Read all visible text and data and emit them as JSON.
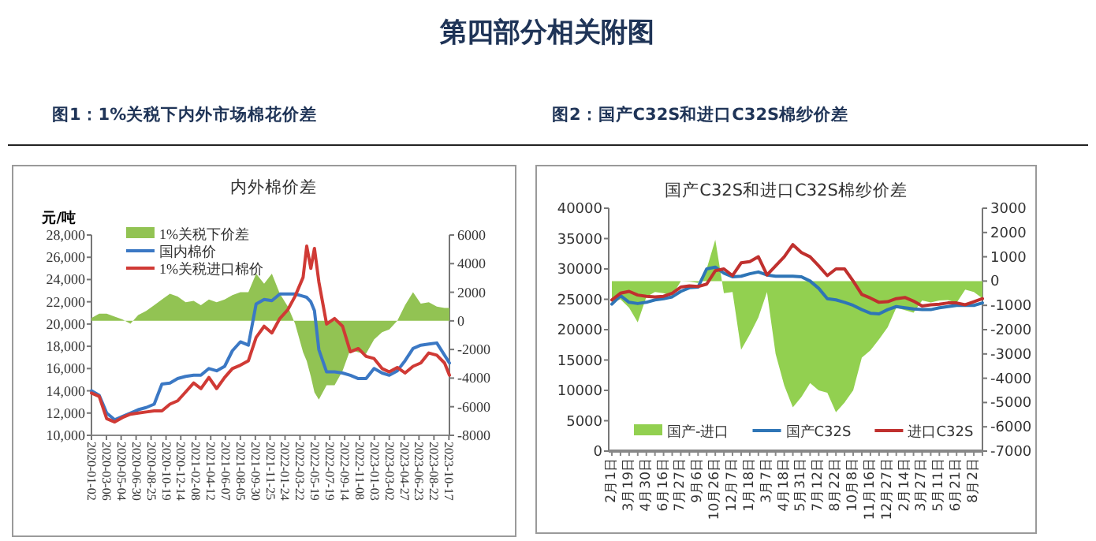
{
  "chart_data": [
    {
      "type": "line",
      "title": "内外棉价差",
      "ylabel": "元/吨",
      "legend": "top left",
      "annotations": [
        "第四部分相关附图",
        "图1：1%关税下内外市场棉花价差"
      ],
      "x": [
        "2020-01-02",
        "2020-02-01",
        "2020-03-01",
        "2020-04-01",
        "2020-05-01",
        "2020-06-01",
        "2020-07-01",
        "2020-08-01",
        "2020-09-01",
        "2020-10-01",
        "2020-11-01",
        "2020-12-01",
        "2021-01-01",
        "2021-02-01",
        "2021-03-01",
        "2021-04-01",
        "2021-05-01",
        "2021-06-01",
        "2021-07-01",
        "2021-08-01",
        "2021-09-01",
        "2021-10-01",
        "2021-11-01",
        "2021-12-01",
        "2022-01-01",
        "2022-02-01",
        "2022-03-01",
        "2022-04-01",
        "2022-04-15",
        "2022-05-01",
        "2022-05-15",
        "2022-06-01",
        "2022-07-01",
        "2022-08-01",
        "2022-09-01",
        "2022-10-01",
        "2022-11-01",
        "2022-12-01",
        "2023-01-01",
        "2023-02-01",
        "2023-03-01",
        "2023-04-01",
        "2023-05-01",
        "2023-06-01",
        "2023-07-01",
        "2023-08-01",
        "2023-09-01",
        "2023-10-01",
        "2023-10-20"
      ],
      "xlim": [
        "2020-01-02",
        "2023-10-20"
      ],
      "xticks": [
        {
          "value": "2020-01-02",
          "label": "2020-01-02"
        },
        {
          "value": "2020-02-29",
          "label": "2020-03-06"
        },
        {
          "value": "2020-04-26",
          "label": "2020-05-04"
        },
        {
          "value": "2020-06-23",
          "label": "2020-06-30"
        },
        {
          "value": "2020-08-20",
          "label": "2020-08-25"
        },
        {
          "value": "2020-10-17",
          "label": "2020-10-19"
        },
        {
          "value": "2020-12-13",
          "label": "2020-12-14"
        },
        {
          "value": "2021-02-09",
          "label": "2021-02-08"
        },
        {
          "value": "2021-04-08",
          "label": "2021-04-12"
        },
        {
          "value": "2021-06-04",
          "label": "2021-06-07"
        },
        {
          "value": "2021-08-01",
          "label": "2021-08-05"
        },
        {
          "value": "2021-09-28",
          "label": "2021-09-30"
        },
        {
          "value": "2021-11-24",
          "label": "2021-11-25"
        },
        {
          "value": "2022-01-21",
          "label": "2022-01-24"
        },
        {
          "value": "2022-03-20",
          "label": "2022-03-22"
        },
        {
          "value": "2022-05-17",
          "label": "2022-05-19"
        },
        {
          "value": "2022-07-13",
          "label": "2022-07-19"
        },
        {
          "value": "2022-09-09",
          "label": "2022-09-14"
        },
        {
          "value": "2022-11-06",
          "label": "2022-11-08"
        },
        {
          "value": "2023-01-02",
          "label": "2023-01-03"
        },
        {
          "value": "2023-03-01",
          "label": "2023-03-02"
        },
        {
          "value": "2023-04-28",
          "label": "2023-04-27"
        },
        {
          "value": "2023-06-24",
          "label": "2023-06-23"
        },
        {
          "value": "2023-08-21",
          "label": "2023-08-22"
        },
        {
          "value": "2023-10-18",
          "label": "2023-10-17"
        }
      ],
      "ylim": [
        10000,
        28000
      ],
      "yticks": [
        {
          "value": 10000,
          "label": "10,000"
        },
        {
          "value": 12000,
          "label": "12,000"
        },
        {
          "value": 14000,
          "label": "14,000"
        },
        {
          "value": 16000,
          "label": "16,000"
        },
        {
          "value": 18000,
          "label": "18,000"
        },
        {
          "value": 20000,
          "label": "20,000"
        },
        {
          "value": 22000,
          "label": "22,000"
        },
        {
          "value": 24000,
          "label": "24,000"
        },
        {
          "value": 26000,
          "label": "26,000"
        },
        {
          "value": 28000,
          "label": "28,000"
        }
      ],
      "y2lim": [
        -8000,
        6000
      ],
      "y2ticks": [
        -8000,
        -6000,
        -4000,
        -2000,
        0,
        2000,
        4000,
        6000
      ],
      "series": [
        {
          "name": "1%关税下价差",
          "type": "area",
          "axis": "y2",
          "color": "#92c353",
          "values": [
            200,
            500,
            500,
            300,
            100,
            -200,
            400,
            700,
            1100,
            1500,
            1900,
            1700,
            1300,
            1400,
            1100,
            1500,
            1300,
            1500,
            1800,
            2000,
            2000,
            3300,
            2600,
            3300,
            1900,
            1000,
            -200,
            -2200,
            -2800,
            -3900,
            -5000,
            -5500,
            -4500,
            -4500,
            -3500,
            -2000,
            -2200,
            -2300,
            -1300,
            -800,
            -600,
            0,
            1100,
            2000,
            1200,
            1300,
            1000,
            900,
            900
          ]
        },
        {
          "name": "国内棉价",
          "color": "#3b78c4",
          "values": [
            14000,
            13600,
            12000,
            11400,
            11700,
            12000,
            12300,
            12500,
            12800,
            14600,
            14700,
            15100,
            15300,
            15400,
            15400,
            16000,
            15800,
            16200,
            17600,
            18400,
            18100,
            21800,
            22200,
            22100,
            22700,
            22700,
            22700,
            22500,
            22400,
            22000,
            21200,
            17700,
            15700,
            15700,
            15600,
            15400,
            15100,
            15100,
            16000,
            15600,
            15400,
            15800,
            16700,
            17800,
            18100,
            18200,
            18300,
            17200,
            16500
          ]
        },
        {
          "name": "1%关税进口棉价",
          "color": "#d03a35",
          "values": [
            13800,
            13500,
            11500,
            11200,
            11600,
            11900,
            12000,
            12100,
            12200,
            12200,
            12800,
            13100,
            13900,
            14700,
            14200,
            15200,
            14200,
            15200,
            16000,
            16300,
            16700,
            18800,
            19800,
            19200,
            20500,
            21300,
            22500,
            24200,
            27000,
            25000,
            26800,
            23800,
            20000,
            20500,
            19800,
            17500,
            17800,
            17100,
            16900,
            16000,
            15700,
            16100,
            15600,
            16200,
            16500,
            17400,
            17200,
            16500,
            15400
          ]
        }
      ]
    },
    {
      "type": "line",
      "title": "国产C32S和进口C32S棉纱价差",
      "legend": "bottom",
      "annotations": [
        "图2：国产C32S和进口C32S棉纱价差"
      ],
      "categories": [
        "2月1日",
        null,
        "3月19日",
        null,
        "4月30日",
        null,
        "6月16日",
        null,
        "7月27日",
        null,
        "9月6日",
        null,
        "10月26日",
        null,
        "12月7日",
        null,
        "1月18日",
        null,
        "3月7日",
        null,
        "4月18日",
        null,
        "5月31日",
        null,
        "7月12日",
        null,
        "8月22日",
        null,
        "10月8日",
        null,
        "11月16日",
        null,
        "12月27日",
        null,
        "2月14日",
        null,
        "3月27日",
        null,
        "5月11日",
        null,
        "6月21日",
        null,
        "8月2日",
        null
      ],
      "ylim": [
        0,
        40000
      ],
      "yticks": [
        0,
        5000,
        10000,
        15000,
        20000,
        25000,
        30000,
        35000,
        40000
      ],
      "y2lim": [
        -7000,
        3000
      ],
      "y2ticks": [
        -7000,
        -6000,
        -5000,
        -4000,
        -3000,
        -2000,
        -1000,
        0,
        1000,
        2000,
        3000
      ],
      "series": [
        {
          "name": "国产-进口",
          "type": "area",
          "axis": "y2",
          "color": "#92d050",
          "values": [
            -890,
            -750,
            -1100,
            -1700,
            -650,
            -450,
            -500,
            -600,
            0,
            -20,
            -80,
            500,
            1700,
            -500,
            -450,
            -2830,
            -2200,
            -1500,
            -450,
            -3000,
            -4300,
            -5200,
            -4770,
            -4200,
            -4500,
            -4600,
            -5400,
            -5000,
            -4500,
            -3150,
            -2850,
            -2400,
            -1900,
            -1100,
            -1200,
            -1300,
            -800,
            -880,
            -800,
            -780,
            -900,
            -350,
            -450,
            -710
          ]
        },
        {
          "name": "国产C32S",
          "color": "#2e75b6",
          "values": [
            24200,
            25600,
            24500,
            24300,
            24500,
            24900,
            25100,
            25400,
            26300,
            26900,
            27000,
            30000,
            30300,
            29300,
            28700,
            28800,
            29200,
            29500,
            29000,
            28800,
            28800,
            28800,
            28700,
            28000,
            26800,
            25100,
            24900,
            24500,
            24000,
            23300,
            22700,
            22600,
            23300,
            23800,
            23600,
            23400,
            23300,
            23300,
            23600,
            23800,
            24000,
            24000,
            24000,
            24400
          ]
        },
        {
          "name": "进口C32S",
          "color": "#c0302e",
          "values": [
            24900,
            26000,
            26300,
            25700,
            25500,
            25400,
            25500,
            26000,
            27000,
            27200,
            27100,
            27500,
            29700,
            30000,
            28900,
            31000,
            31200,
            32000,
            29000,
            30500,
            32000,
            34000,
            32700,
            32000,
            30500,
            28900,
            30000,
            30000,
            28000,
            25800,
            25200,
            24500,
            24600,
            25100,
            25300,
            24700,
            23900,
            24100,
            24200,
            24400,
            24400,
            24100,
            24600,
            25100
          ]
        }
      ]
    }
  ]
}
